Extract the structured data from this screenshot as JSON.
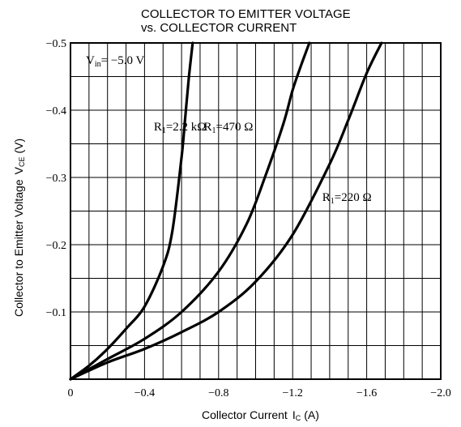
{
  "chart_data": {
    "type": "line",
    "title_line1": "COLLECTOR TO EMITTER VOLTAGE",
    "title_line2": "vs. COLLECTOR CURRENT",
    "xlabel_main": "Collector Current",
    "xlabel_sym": "I",
    "xlabel_sub": "C",
    "xlabel_unit": "(A)",
    "ylabel_main": "Collector to Emitter Voltage",
    "ylabel_sym": "V",
    "ylabel_sub": "CE",
    "ylabel_unit": "(V)",
    "xlim": [
      0,
      -2.0
    ],
    "ylim": [
      0,
      -0.5
    ],
    "x_ticks": [
      {
        "value": 0,
        "label": "0"
      },
      {
        "value": -0.4,
        "label": "−0.4"
      },
      {
        "value": -0.8,
        "label": "−0.8"
      },
      {
        "value": -1.2,
        "label": "−1.2"
      },
      {
        "value": -1.6,
        "label": "−1.6"
      },
      {
        "value": -2.0,
        "label": "−2.0"
      }
    ],
    "y_ticks": [
      {
        "value": -0.1,
        "label": "−0.1"
      },
      {
        "value": -0.2,
        "label": "−0.2"
      },
      {
        "value": -0.3,
        "label": "−0.3"
      },
      {
        "value": -0.4,
        "label": "−0.4"
      },
      {
        "value": -0.5,
        "label": "−0.5"
      }
    ],
    "grid": true,
    "condition": {
      "sym": "V",
      "sub": "in",
      "value": "= −5.0 V"
    },
    "series": [
      {
        "name": "R₁=2.2 kΩ",
        "label_sym": "R",
        "label_sub": "1",
        "label_value": "=2.2 kΩ",
        "label_at": [
          -0.45,
          -0.37
        ],
        "x": [
          0,
          -0.1,
          -0.2,
          -0.3,
          -0.4,
          -0.5,
          -0.55,
          -0.6,
          -0.62,
          -0.64,
          -0.66
        ],
        "y": [
          0,
          -0.02,
          -0.045,
          -0.075,
          -0.108,
          -0.168,
          -0.22,
          -0.33,
          -0.39,
          -0.45,
          -0.5
        ]
      },
      {
        "name": "R₁=470 Ω",
        "label_sym": "R",
        "label_sub": "1",
        "label_value": "=470 Ω",
        "label_at": [
          -0.72,
          -0.37
        ],
        "x": [
          0,
          -0.2,
          -0.4,
          -0.6,
          -0.8,
          -0.95,
          -1.05,
          -1.15,
          -1.2,
          -1.25,
          -1.29
        ],
        "y": [
          0,
          -0.03,
          -0.06,
          -0.1,
          -0.16,
          -0.23,
          -0.3,
          -0.38,
          -0.43,
          -0.47,
          -0.5
        ]
      },
      {
        "name": "R₁=220 Ω",
        "label_sym": "R",
        "label_sub": "1",
        "label_value": "=220 Ω",
        "label_at": [
          -1.36,
          -0.265
        ],
        "x": [
          0,
          -0.2,
          -0.4,
          -0.6,
          -0.8,
          -1.0,
          -1.2,
          -1.4,
          -1.5,
          -1.6,
          -1.68
        ],
        "y": [
          0,
          -0.025,
          -0.045,
          -0.07,
          -0.1,
          -0.145,
          -0.215,
          -0.32,
          -0.385,
          -0.455,
          -0.5
        ]
      }
    ]
  }
}
